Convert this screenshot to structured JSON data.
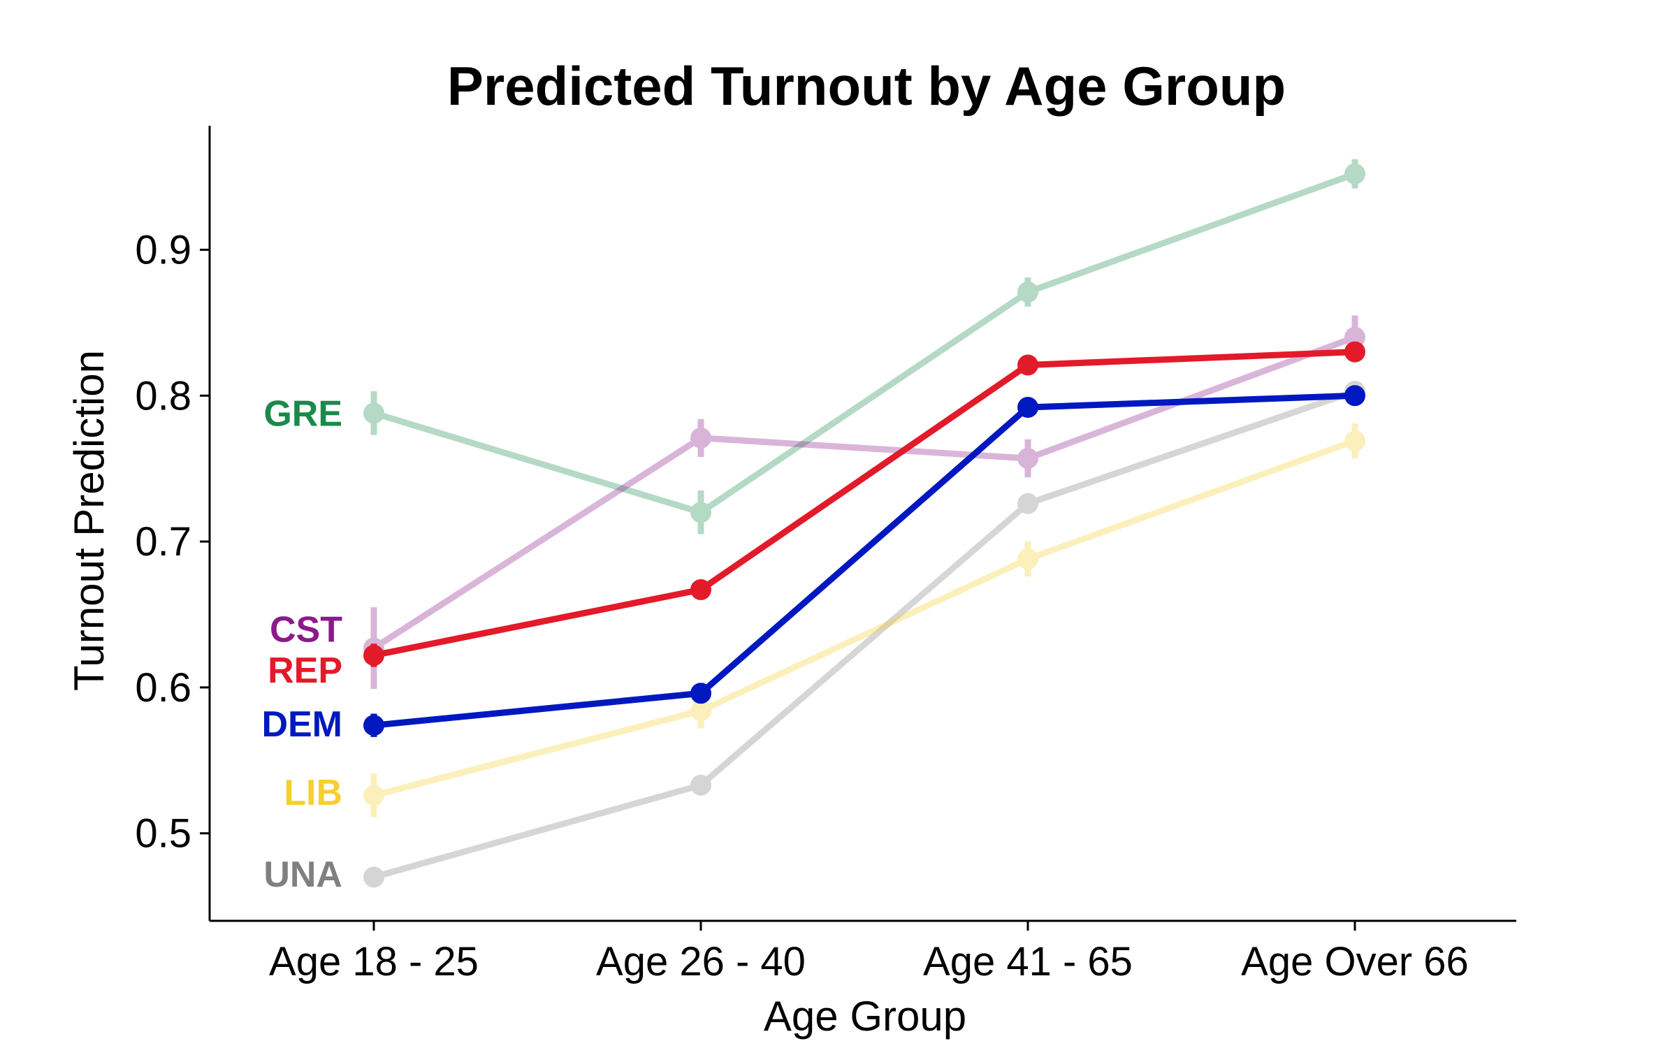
{
  "chart_data": {
    "type": "line",
    "title": "Predicted Turnout by Age Group",
    "xlabel": "Age Group",
    "ylabel": "Turnout Prediction",
    "categories": [
      "Age 18 - 25",
      "Age 26 - 40",
      "Age 41 - 65",
      "Age Over 66"
    ],
    "ylim": [
      0.44,
      0.985
    ],
    "yticks": [
      0.5,
      0.6,
      0.7,
      0.8,
      0.9
    ],
    "ytick_labels": [
      "0.5",
      "0.6",
      "0.7",
      "0.8",
      "0.9"
    ],
    "grid": false,
    "series": [
      {
        "name": "GRE",
        "color": "#1a8a4a",
        "emphasis": false,
        "values": [
          0.788,
          0.72,
          0.871,
          0.952
        ],
        "err": [
          0.015,
          0.015,
          0.01,
          0.01
        ]
      },
      {
        "name": "CST",
        "color": "#8b1a8b",
        "emphasis": false,
        "values": [
          0.627,
          0.771,
          0.757,
          0.84
        ],
        "err": [
          0.028,
          0.013,
          0.013,
          0.015
        ]
      },
      {
        "name": "UNA",
        "color": "#808080",
        "emphasis": false,
        "values": [
          0.47,
          0.533,
          0.726,
          0.803
        ],
        "err": [
          0.006,
          0.006,
          0.006,
          0.006
        ]
      },
      {
        "name": "LIB",
        "color": "#f4d030",
        "emphasis": false,
        "values": [
          0.526,
          0.584,
          0.688,
          0.769
        ],
        "err": [
          0.015,
          0.012,
          0.012,
          0.012
        ]
      },
      {
        "name": "REP",
        "color": "#e31a2a",
        "emphasis": true,
        "values": [
          0.622,
          0.667,
          0.821,
          0.83
        ],
        "err": [
          0.008,
          0.006,
          0.005,
          0.005
        ]
      },
      {
        "name": "DEM",
        "color": "#0018c0",
        "emphasis": true,
        "values": [
          0.574,
          0.596,
          0.792,
          0.8
        ],
        "err": [
          0.008,
          0.007,
          0.006,
          0.005
        ]
      }
    ]
  }
}
